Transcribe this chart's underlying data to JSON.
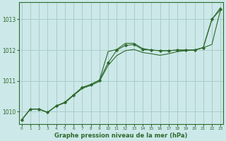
{
  "title": "Graphe pression niveau de la mer (hPa)",
  "bg_color": "#cce8e8",
  "grid_color": "#aacccc",
  "line_color": "#2d6a2d",
  "ylim": [
    1009.6,
    1013.55
  ],
  "yticks": [
    1010,
    1011,
    1012,
    1013
  ],
  "xlim": [
    -0.3,
    23.3
  ],
  "y_smooth": [
    1009.72,
    1010.08,
    1010.08,
    1009.97,
    1010.18,
    1010.28,
    1010.52,
    1010.75,
    1010.85,
    1010.98,
    1011.5,
    1011.82,
    1011.98,
    1012.02,
    1011.92,
    1011.88,
    1011.83,
    1011.88,
    1011.95,
    1011.98,
    1012.0,
    1012.08,
    1012.18,
    1013.32
  ],
  "y_marked": [
    1009.72,
    1010.08,
    1010.08,
    1009.97,
    1010.18,
    1010.3,
    1010.54,
    1010.78,
    1010.88,
    1011.02,
    1011.58,
    1012.0,
    1012.15,
    1012.18,
    1012.02,
    1012.0,
    1011.98,
    1011.98,
    1012.0,
    1012.0,
    1012.0,
    1012.08,
    1013.0,
    1013.32
  ],
  "y_upper": [
    1009.72,
    1010.08,
    1010.08,
    1009.97,
    1010.18,
    1010.3,
    1010.54,
    1010.78,
    1010.88,
    1011.02,
    1011.95,
    1012.02,
    1012.22,
    1012.22,
    1012.05,
    1012.0,
    1011.98,
    1011.98,
    1012.0,
    1012.0,
    1012.0,
    1012.08,
    1013.0,
    1013.38
  ]
}
